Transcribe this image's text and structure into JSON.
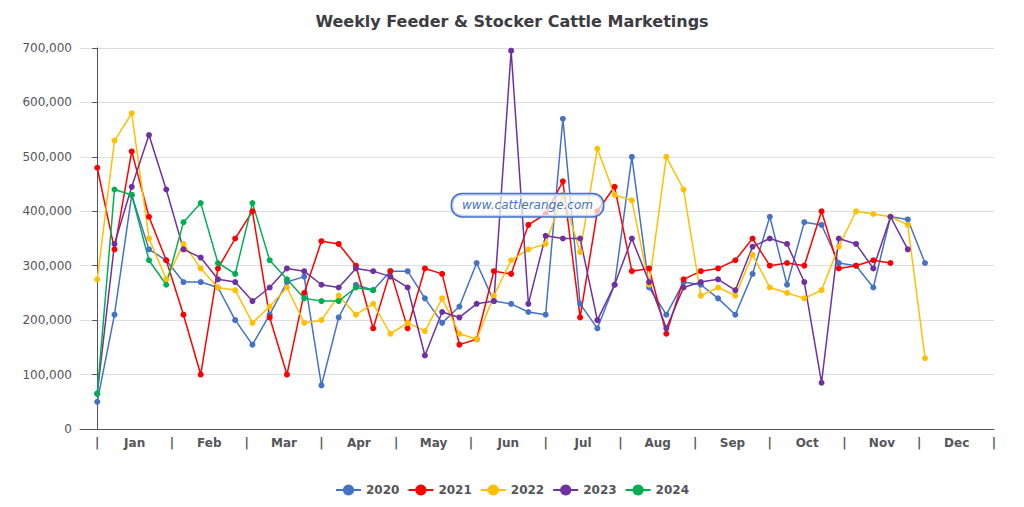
{
  "chart_data": {
    "type": "line",
    "title": "Weekly Feeder & Stocker Cattle Marketings",
    "marker": "circle",
    "line_style": "solid",
    "grid": true,
    "legend": "bottom",
    "annotations": [
      {
        "text": "www.cattlerange.com"
      }
    ],
    "xlim": [
      -1,
      52
    ],
    "xticks": [
      {
        "value": 0,
        "label": "|"
      },
      {
        "value": 2.1666666666666665,
        "label": "Jan"
      },
      {
        "value": 4.333333333333333,
        "label": "|"
      },
      {
        "value": 6.5,
        "label": "Feb"
      },
      {
        "value": 8.666666666666666,
        "label": "|"
      },
      {
        "value": 10.833333333333332,
        "label": "Mar"
      },
      {
        "value": 13,
        "label": "|"
      },
      {
        "value": 15.166666666666666,
        "label": "Apr"
      },
      {
        "value": 17.333333333333332,
        "label": "|"
      },
      {
        "value": 19.5,
        "label": "May"
      },
      {
        "value": 21.666666666666668,
        "label": "|"
      },
      {
        "value": 23.833333333333336,
        "label": "Jun"
      },
      {
        "value": 26,
        "label": "|"
      },
      {
        "value": 28.166666666666664,
        "label": "Jul"
      },
      {
        "value": 30.333333333333332,
        "label": "|"
      },
      {
        "value": 32.5,
        "label": "Aug"
      },
      {
        "value": 34.666666666666664,
        "label": "|"
      },
      {
        "value": 36.83333333333333,
        "label": "Sep"
      },
      {
        "value": 39,
        "label": "|"
      },
      {
        "value": 41.166666666666664,
        "label": "Oct"
      },
      {
        "value": 43.333333333333336,
        "label": "|"
      },
      {
        "value": 45.5,
        "label": "Nov"
      },
      {
        "value": 47.666666666666664,
        "label": "|"
      },
      {
        "value": 49.83333333333333,
        "label": "Dec"
      },
      {
        "value": 52,
        "label": "|"
      }
    ],
    "ylim": [
      0,
      700000
    ],
    "yticks": [
      0,
      {
        "value": 100000,
        "label": "100,000"
      },
      {
        "value": 200000,
        "label": "200,000"
      },
      {
        "value": 300000,
        "label": "300,000"
      },
      {
        "value": 400000,
        "label": "400,000"
      },
      {
        "value": 500000,
        "label": "500,000"
      },
      {
        "value": 600000,
        "label": "600,000"
      },
      {
        "value": 700000,
        "label": "700,000"
      }
    ],
    "series": [
      {
        "name": "2020",
        "color": "#4472C4",
        "x": [
          0,
          1,
          2,
          3,
          4,
          5,
          6,
          7,
          8,
          9,
          10,
          11,
          12,
          13,
          14,
          15,
          16,
          17,
          18,
          19,
          20,
          21,
          22,
          23,
          24,
          25,
          26,
          27,
          28,
          29,
          30,
          31,
          32,
          33,
          34,
          35,
          36,
          37,
          38,
          39,
          40,
          41,
          42,
          43,
          44,
          45,
          46,
          47,
          48
        ],
        "values": [
          50000,
          210000,
          430000,
          330000,
          310000,
          270000,
          270000,
          260000,
          200000,
          155000,
          210000,
          270000,
          280000,
          80000,
          205000,
          265000,
          255000,
          290000,
          290000,
          240000,
          195000,
          225000,
          305000,
          235000,
          230000,
          215000,
          210000,
          570000,
          230000,
          185000,
          265000,
          500000,
          260000,
          210000,
          270000,
          265000,
          240000,
          210000,
          285000,
          390000,
          265000,
          380000,
          375000,
          305000,
          300000,
          260000,
          390000,
          385000,
          305000
        ]
      },
      {
        "name": "2021",
        "color": "#FF0000",
        "x": [
          0,
          1,
          2,
          3,
          4,
          5,
          6,
          7,
          8,
          9,
          10,
          11,
          12,
          13,
          14,
          15,
          16,
          17,
          18,
          19,
          20,
          21,
          22,
          23,
          24,
          25,
          26,
          27,
          28,
          29,
          30,
          31,
          32,
          33,
          34,
          35,
          36,
          37,
          38,
          39,
          40,
          41,
          42,
          43,
          44,
          45,
          46
        ],
        "values": [
          480000,
          330000,
          510000,
          390000,
          310000,
          210000,
          100000,
          295000,
          350000,
          400000,
          205000,
          100000,
          250000,
          345000,
          340000,
          300000,
          185000,
          290000,
          185000,
          295000,
          285000,
          155000,
          165000,
          290000,
          285000,
          375000,
          395000,
          455000,
          205000,
          400000,
          445000,
          290000,
          295000,
          175000,
          275000,
          290000,
          295000,
          310000,
          350000,
          300000,
          305000,
          300000,
          400000,
          295000,
          300000,
          310000,
          305000
        ]
      },
      {
        "name": "2022",
        "color": "#FFC000",
        "x": [
          0,
          1,
          2,
          3,
          4,
          5,
          6,
          7,
          8,
          9,
          10,
          11,
          12,
          13,
          14,
          15,
          16,
          17,
          18,
          19,
          20,
          21,
          22,
          23,
          24,
          25,
          26,
          27,
          28,
          29,
          30,
          31,
          32,
          33,
          34,
          35,
          36,
          37,
          38,
          39,
          40,
          41,
          42,
          43,
          44,
          45,
          46,
          47,
          48
        ],
        "values": [
          275000,
          530000,
          580000,
          350000,
          275000,
          340000,
          295000,
          260000,
          255000,
          195000,
          225000,
          260000,
          195000,
          200000,
          245000,
          210000,
          230000,
          175000,
          195000,
          180000,
          240000,
          175000,
          165000,
          245000,
          310000,
          330000,
          340000,
          430000,
          325000,
          515000,
          430000,
          420000,
          265000,
          500000,
          440000,
          245000,
          260000,
          245000,
          320000,
          260000,
          250000,
          240000,
          255000,
          335000,
          400000,
          395000,
          390000,
          375000,
          130000
        ]
      },
      {
        "name": "2023",
        "color": "#7030A0",
        "x": [
          0,
          1,
          2,
          3,
          4,
          5,
          6,
          7,
          8,
          9,
          10,
          11,
          12,
          13,
          14,
          15,
          16,
          17,
          18,
          19,
          20,
          21,
          22,
          23,
          24,
          25,
          26,
          27,
          28,
          29,
          30,
          31,
          32,
          33,
          34,
          35,
          36,
          37,
          38,
          39,
          40,
          41,
          42,
          43,
          44,
          45,
          46,
          47
        ],
        "values": [
          65000,
          340000,
          445000,
          540000,
          440000,
          330000,
          315000,
          275000,
          270000,
          235000,
          260000,
          295000,
          290000,
          265000,
          260000,
          295000,
          290000,
          280000,
          260000,
          135000,
          215000,
          205000,
          230000,
          235000,
          695000,
          230000,
          355000,
          350000,
          350000,
          200000,
          265000,
          350000,
          270000,
          185000,
          260000,
          270000,
          275000,
          255000,
          335000,
          350000,
          340000,
          270000,
          85000,
          350000,
          340000,
          295000,
          390000,
          330000
        ]
      },
      {
        "name": "2024",
        "color": "#00B050",
        "x": [
          0,
          1,
          2,
          3,
          4,
          5,
          6,
          7,
          8,
          9,
          10,
          11,
          12,
          13,
          14,
          15,
          16
        ],
        "values": [
          65000,
          440000,
          430000,
          310000,
          265000,
          380000,
          415000,
          305000,
          285000,
          415000,
          310000,
          275000,
          240000,
          235000,
          235000,
          260000,
          255000
        ]
      }
    ]
  }
}
